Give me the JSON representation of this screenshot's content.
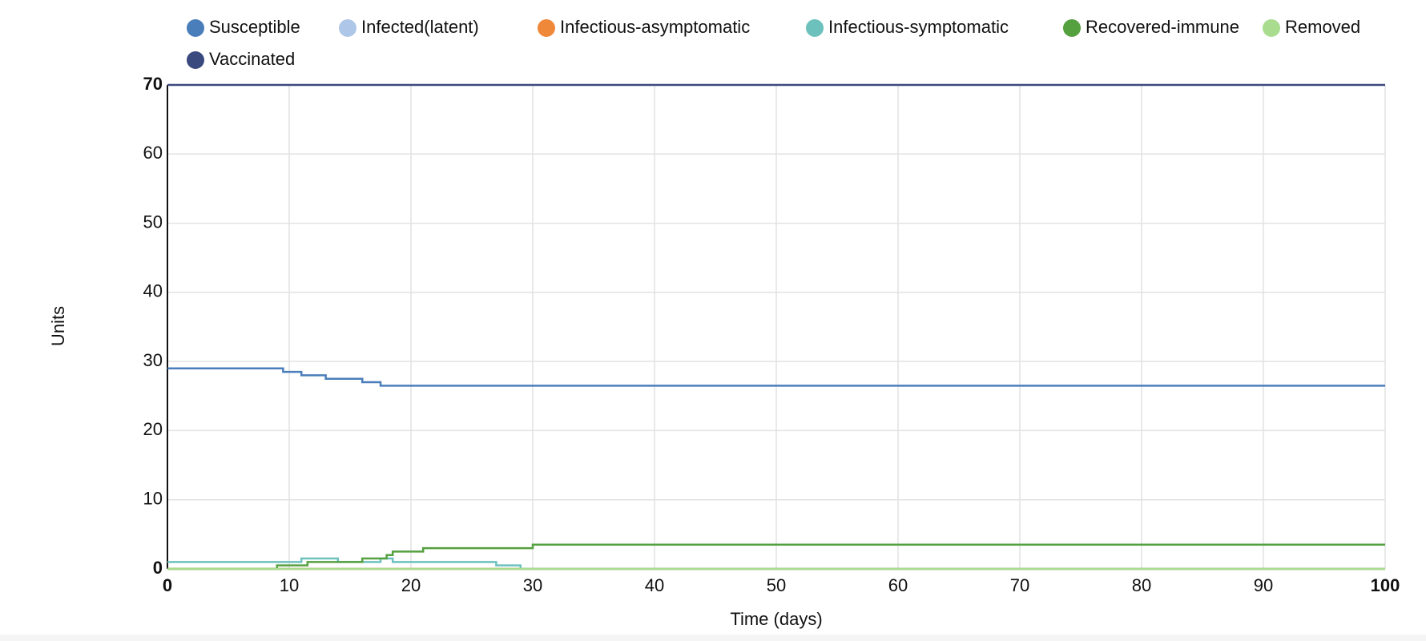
{
  "chart_data": {
    "type": "line",
    "step": "after",
    "grid": true,
    "xlabel": "Time (days)",
    "ylabel": "Units",
    "x": [
      0,
      9,
      9.5,
      11,
      11.5,
      13,
      14,
      16,
      17.5,
      18,
      18.5,
      21,
      27,
      29,
      30,
      100
    ],
    "series": [
      {
        "name": "Susceptible",
        "color": "#4a7ebb",
        "values": [
          29,
          29,
          28.5,
          28,
          28,
          27.5,
          27.5,
          27,
          26.5,
          26.5,
          26.5,
          26.5,
          26.5,
          26.5,
          26.5,
          26.5
        ]
      },
      {
        "name": "Infected(latent)",
        "color": "#aec7e8",
        "values": [
          0,
          0,
          0,
          0,
          0,
          0,
          0,
          0,
          0,
          0,
          0,
          0,
          0,
          0,
          0,
          0
        ]
      },
      {
        "name": "Infectious-asymptomatic",
        "color": "#f0883a",
        "values": [
          0,
          0,
          0,
          0,
          0,
          0,
          0,
          0,
          0,
          0,
          0,
          0,
          0,
          0,
          0,
          0
        ]
      },
      {
        "name": "Infectious-symptomatic",
        "color": "#6cc1bd",
        "values": [
          1,
          1,
          1,
          1.5,
          1.5,
          1.5,
          1,
          1,
          1.5,
          1.5,
          1,
          1,
          0.5,
          0,
          0,
          0
        ]
      },
      {
        "name": "Recovered-immune",
        "color": "#55a03f",
        "values": [
          0,
          0.5,
          0.5,
          0.5,
          1,
          1,
          1,
          1.5,
          1.5,
          2,
          2.5,
          3,
          3,
          3,
          3.5,
          3.5
        ]
      },
      {
        "name": "Removed",
        "color": "#a9dc8f",
        "values": [
          0,
          0,
          0,
          0,
          0,
          0,
          0,
          0,
          0,
          0,
          0,
          0,
          0,
          0,
          0,
          0
        ]
      },
      {
        "name": "Vaccinated",
        "color": "#3b4a7e",
        "values": [
          70,
          70,
          70,
          70,
          70,
          70,
          70,
          70,
          70,
          70,
          70,
          70,
          70,
          70,
          70,
          70
        ]
      }
    ],
    "xlim": [
      0,
      100
    ],
    "xticks": [
      0,
      10,
      20,
      30,
      40,
      50,
      60,
      70,
      80,
      90,
      100
    ],
    "ylim": [
      0,
      70
    ],
    "yticks": [
      0,
      10,
      20,
      30,
      40,
      50,
      60,
      70
    ]
  }
}
